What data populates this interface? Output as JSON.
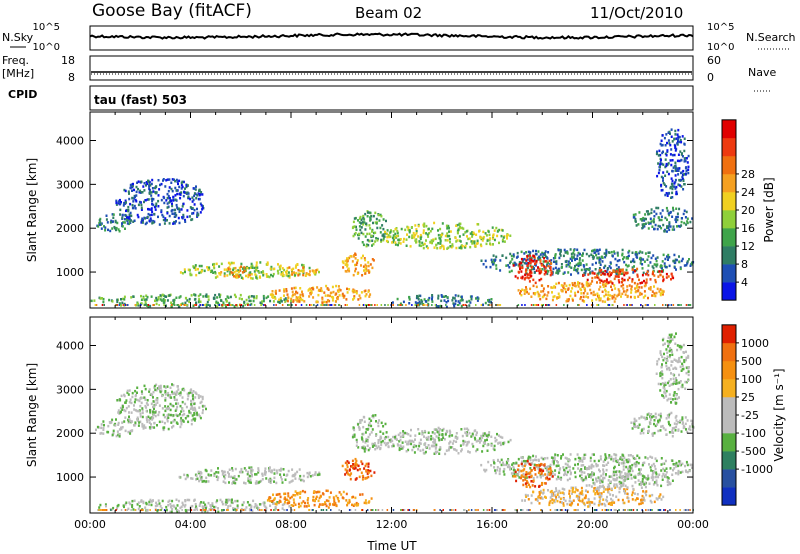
{
  "header": {
    "station": "Goose Bay (fitACF)",
    "beam": "Beam 02",
    "date": "11/Oct/2010"
  },
  "top_panels": {
    "nsky_label": "N.Sky",
    "nsearch_label": "N.Search",
    "nsky_ticks": [
      "10^5",
      "10^0"
    ],
    "nsearch_ticks": [
      "10^5",
      "10^0"
    ],
    "freq_label": "Freq.",
    "freq_unit": "[MHz]",
    "freq_ticks": [
      "18",
      "8"
    ],
    "nave_label": "Nave",
    "nave_ticks": [
      "60",
      "0"
    ],
    "cpid_label": "CPID",
    "cpid_value": "tau (fast) 503"
  },
  "chart_data": [
    {
      "type": "heatmap",
      "name": "power",
      "ylabel": "Slant Range [km]",
      "ylim": [
        180,
        4650
      ],
      "yticks": [
        1000,
        2000,
        3000,
        4000
      ],
      "xlabel": "",
      "xlim_hours": [
        0,
        24
      ],
      "colorbar": {
        "label": "Power [dB]",
        "ticks": [
          "4",
          "8",
          "12",
          "16",
          "20",
          "24",
          "28"
        ],
        "colors": [
          "#0a14e6",
          "#1e4fb4",
          "#2f7d64",
          "#3fa44a",
          "#8fcf3a",
          "#f0d020",
          "#f5a020",
          "#f07010",
          "#ee3a10",
          "#e00000"
        ]
      },
      "regions": [
        {
          "t0": 0.2,
          "t1": 1.8,
          "r0": 1950,
          "r1": 2350,
          "level": 2
        },
        {
          "t0": 1.0,
          "t1": 4.6,
          "r0": 2100,
          "r1": 3150,
          "level": 1
        },
        {
          "t0": 3.5,
          "t1": 9.2,
          "r0": 880,
          "r1": 1250,
          "level": 4
        },
        {
          "t0": 5.0,
          "t1": 6.6,
          "r0": 900,
          "r1": 1150,
          "level": 6
        },
        {
          "t0": 7.5,
          "t1": 9.0,
          "r0": 930,
          "r1": 1150,
          "level": 6
        },
        {
          "t0": 0.0,
          "t1": 8.0,
          "r0": 230,
          "r1": 520,
          "level": 3
        },
        {
          "t0": 7.0,
          "t1": 11.2,
          "r0": 330,
          "r1": 720,
          "level": 6
        },
        {
          "t0": 10.0,
          "t1": 11.3,
          "r0": 950,
          "r1": 1450,
          "level": 6
        },
        {
          "t0": 10.4,
          "t1": 11.8,
          "r0": 1600,
          "r1": 2450,
          "level": 3
        },
        {
          "t0": 11.6,
          "t1": 16.7,
          "r0": 1550,
          "r1": 2150,
          "level": 4
        },
        {
          "t0": 12.0,
          "t1": 16.0,
          "r0": 230,
          "r1": 500,
          "level": 2
        },
        {
          "t0": 15.5,
          "t1": 24.0,
          "r0": 950,
          "r1": 1550,
          "level": 2
        },
        {
          "t0": 16.8,
          "t1": 18.4,
          "r0": 780,
          "r1": 1400,
          "level": 8
        },
        {
          "t0": 17.0,
          "t1": 22.8,
          "r0": 350,
          "r1": 800,
          "level": 6
        },
        {
          "t0": 19.5,
          "t1": 23.2,
          "r0": 750,
          "r1": 1100,
          "level": 8
        },
        {
          "t0": 21.5,
          "t1": 24.0,
          "r0": 1950,
          "r1": 2500,
          "level": 2
        },
        {
          "t0": 22.5,
          "t1": 23.8,
          "r0": 2700,
          "r1": 4300,
          "level": 1
        }
      ]
    },
    {
      "type": "heatmap",
      "name": "velocity",
      "ylabel": "Slant Range [km]",
      "ylim": [
        180,
        4650
      ],
      "yticks": [
        1000,
        2000,
        3000,
        4000
      ],
      "xlabel": "Time UT",
      "xticks": [
        "00:00",
        "04:00",
        "08:00",
        "12:00",
        "16:00",
        "20:00",
        "00:00"
      ],
      "colorbar": {
        "label": "Velocity [m s⁻¹]",
        "ticks": [
          "1000",
          "500",
          "100",
          "25",
          "-25",
          "-100",
          "-500",
          "-1000"
        ],
        "colors": [
          "#1030c0",
          "#2850a0",
          "#2e8060",
          "#58b040",
          "#bcbcbc",
          "#bcbcbc",
          "#f5b020",
          "#f59010",
          "#f07010",
          "#e02000"
        ]
      },
      "regions": [
        {
          "t0": 0.2,
          "t1": 1.8,
          "r0": 1950,
          "r1": 2350,
          "level": 4
        },
        {
          "t0": 1.0,
          "t1": 4.6,
          "r0": 2100,
          "r1": 3150,
          "level": 4
        },
        {
          "t0": 3.5,
          "t1": 9.2,
          "r0": 880,
          "r1": 1250,
          "level": 4
        },
        {
          "t0": 0.0,
          "t1": 8.0,
          "r0": 230,
          "r1": 520,
          "level": 4
        },
        {
          "t0": 7.0,
          "t1": 11.2,
          "r0": 330,
          "r1": 720,
          "level": 7
        },
        {
          "t0": 10.0,
          "t1": 11.3,
          "r0": 950,
          "r1": 1450,
          "level": 8
        },
        {
          "t0": 10.4,
          "t1": 11.8,
          "r0": 1600,
          "r1": 2450,
          "level": 4
        },
        {
          "t0": 11.6,
          "t1": 16.7,
          "r0": 1550,
          "r1": 2150,
          "level": 4
        },
        {
          "t0": 15.5,
          "t1": 24.0,
          "r0": 950,
          "r1": 1550,
          "level": 4
        },
        {
          "t0": 16.8,
          "t1": 18.4,
          "r0": 780,
          "r1": 1400,
          "level": 8
        },
        {
          "t0": 17.0,
          "t1": 22.8,
          "r0": 350,
          "r1": 800,
          "level": 6
        },
        {
          "t0": 19.5,
          "t1": 23.2,
          "r0": 750,
          "r1": 1100,
          "level": 4
        },
        {
          "t0": 21.5,
          "t1": 24.0,
          "r0": 1950,
          "r1": 2500,
          "level": 4
        },
        {
          "t0": 22.5,
          "t1": 23.8,
          "r0": 2700,
          "r1": 4300,
          "level": 4
        }
      ]
    }
  ]
}
